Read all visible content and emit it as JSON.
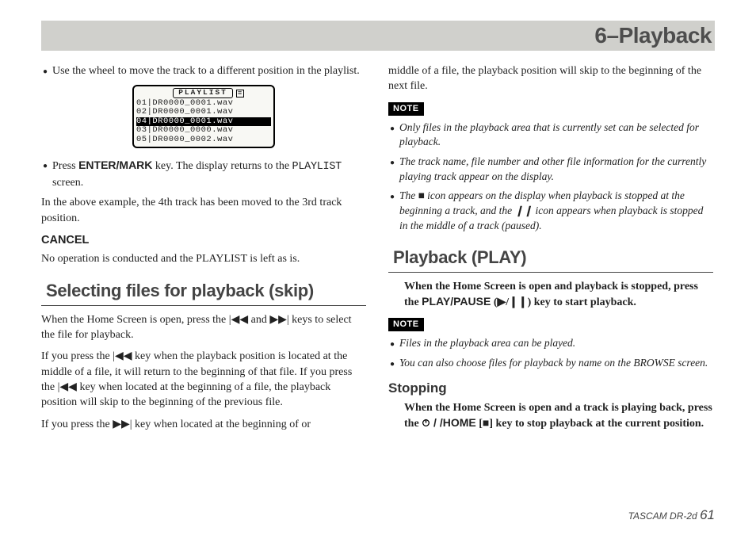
{
  "header": {
    "chapter": "6–Playback"
  },
  "left": {
    "bullet1": "Use the wheel to move the track to a different position in the playlist.",
    "lcd": {
      "title": "PLAYLIST",
      "rows": [
        {
          "num": "01",
          "file": "DR0000_0001.wav",
          "inv": false
        },
        {
          "num": "02",
          "file": "DR0000_0001.wav",
          "inv": false
        },
        {
          "num": "04",
          "file": "DR0000_0001.wav",
          "inv": true
        },
        {
          "num": "03",
          "file": "DR0000_0000.wav",
          "inv": false
        },
        {
          "num": "05",
          "file": "DR0000_0002.wav",
          "inv": false
        }
      ]
    },
    "bullet2_pre": "Press ",
    "bullet2_key": "ENTER/MARK",
    "bullet2_mid": " key. The display returns to the ",
    "bullet2_screen": "PLAYLIST",
    "bullet2_post": " screen.",
    "moved_p": "In the above example, the 4th track has been moved to the 3rd track position.",
    "cancel_h": "CANCEL",
    "cancel_p": "No operation is conducted and the PLAYLIST is left as is.",
    "select_h": "Selecting files for playback (skip)",
    "select_p1": "When the Home Screen is open, press the |◀◀ and ▶▶| keys to select the file for playback.",
    "select_p2": "If you press the |◀◀ key when the playback position is located at the middle of a file, it will return to the beginning of that file. If you press the |◀◀ key when located at the beginning of a file, the playback position will skip to the beginning of the previous file.",
    "select_p3": "If you press the ▶▶| key when located at the beginning of or"
  },
  "right": {
    "middle_p": "middle of a file, the playback position will skip to the beginning of the next file.",
    "note_label": "NOTE",
    "note1": "Only files in the playback area that is currently set can be selected for playback.",
    "note2": "The track name, file number and other file information for the currently playing track appear on the display.",
    "note3_a": "The ",
    "note3_b": " icon appears on the display when playback is stopped at the beginning a track, and the ",
    "note3_c": " icon appears when playback is stopped in the middle of a track (paused).",
    "play_h": "Playback (PLAY)",
    "play_p_a": "When the Home Screen is open and playback is stopped, press the ",
    "play_key": "PLAY/PAUSE",
    "play_p_b": " (▶/❙❙) key to start playback.",
    "note4": "Files in the playback area can be played.",
    "note5": "You can also choose files for playback by name on the BROWSE screen.",
    "stop_h": "Stopping",
    "stop_p_a": "When the Home Screen is open and a track is playing back, press the ",
    "stop_key_sym_label": "power/home",
    "stop_key_text": "/HOME",
    "stop_p_b": " [■] key to stop playback at the current position."
  },
  "footer": {
    "product": "TASCAM  DR-2d",
    "page": "61"
  },
  "colors": {
    "header_bg": "#d0d0cc",
    "heading_gray": "#4d4d4d",
    "body_text": "#222222"
  }
}
